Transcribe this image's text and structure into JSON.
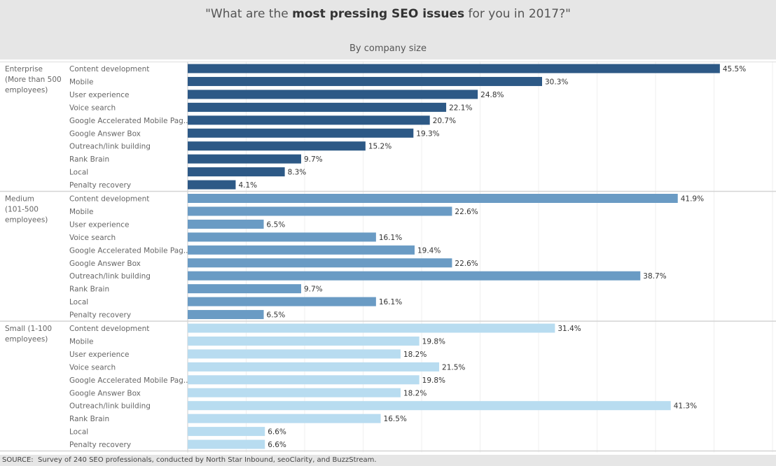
{
  "chart_data": {
    "type": "bar",
    "orientation": "horizontal",
    "title_prefix": "\"What are the ",
    "title_bold": "most pressing SEO issues",
    "title_suffix": " for you in 2017?\"",
    "subtitle": "By company size",
    "categories": [
      "Content development",
      "Mobile",
      "User experience",
      "Voice search",
      "Google Accelerated Mobile Pag..",
      "Google Answer Box",
      "Outreach/link building",
      "Rank Brain",
      "Local",
      "Penalty recovery"
    ],
    "xlim": [
      0,
      50
    ],
    "grid": "vertical",
    "groups": [
      {
        "name": [
          "Enterprise",
          "(More than 500",
          "employees)"
        ],
        "color": "#2d5986",
        "values": [
          45.5,
          30.3,
          24.8,
          22.1,
          20.7,
          19.3,
          15.2,
          9.7,
          8.3,
          4.1
        ]
      },
      {
        "name": [
          "Medium",
          "(101-500",
          "employees)"
        ],
        "color": "#6a9bc4",
        "values": [
          41.9,
          22.6,
          6.5,
          16.1,
          19.4,
          22.6,
          38.7,
          9.7,
          16.1,
          6.5
        ]
      },
      {
        "name": [
          "Small (1-100",
          "employees)"
        ],
        "color": "#b8dcf0",
        "values": [
          31.4,
          19.8,
          18.2,
          21.5,
          19.8,
          18.2,
          41.3,
          16.5,
          6.6,
          6.6
        ]
      }
    ],
    "source_label": "SOURCE:",
    "source": "Survey of 240 SEO professionals, conducted by North Star Inbound, seoClarity, and BuzzStream."
  }
}
